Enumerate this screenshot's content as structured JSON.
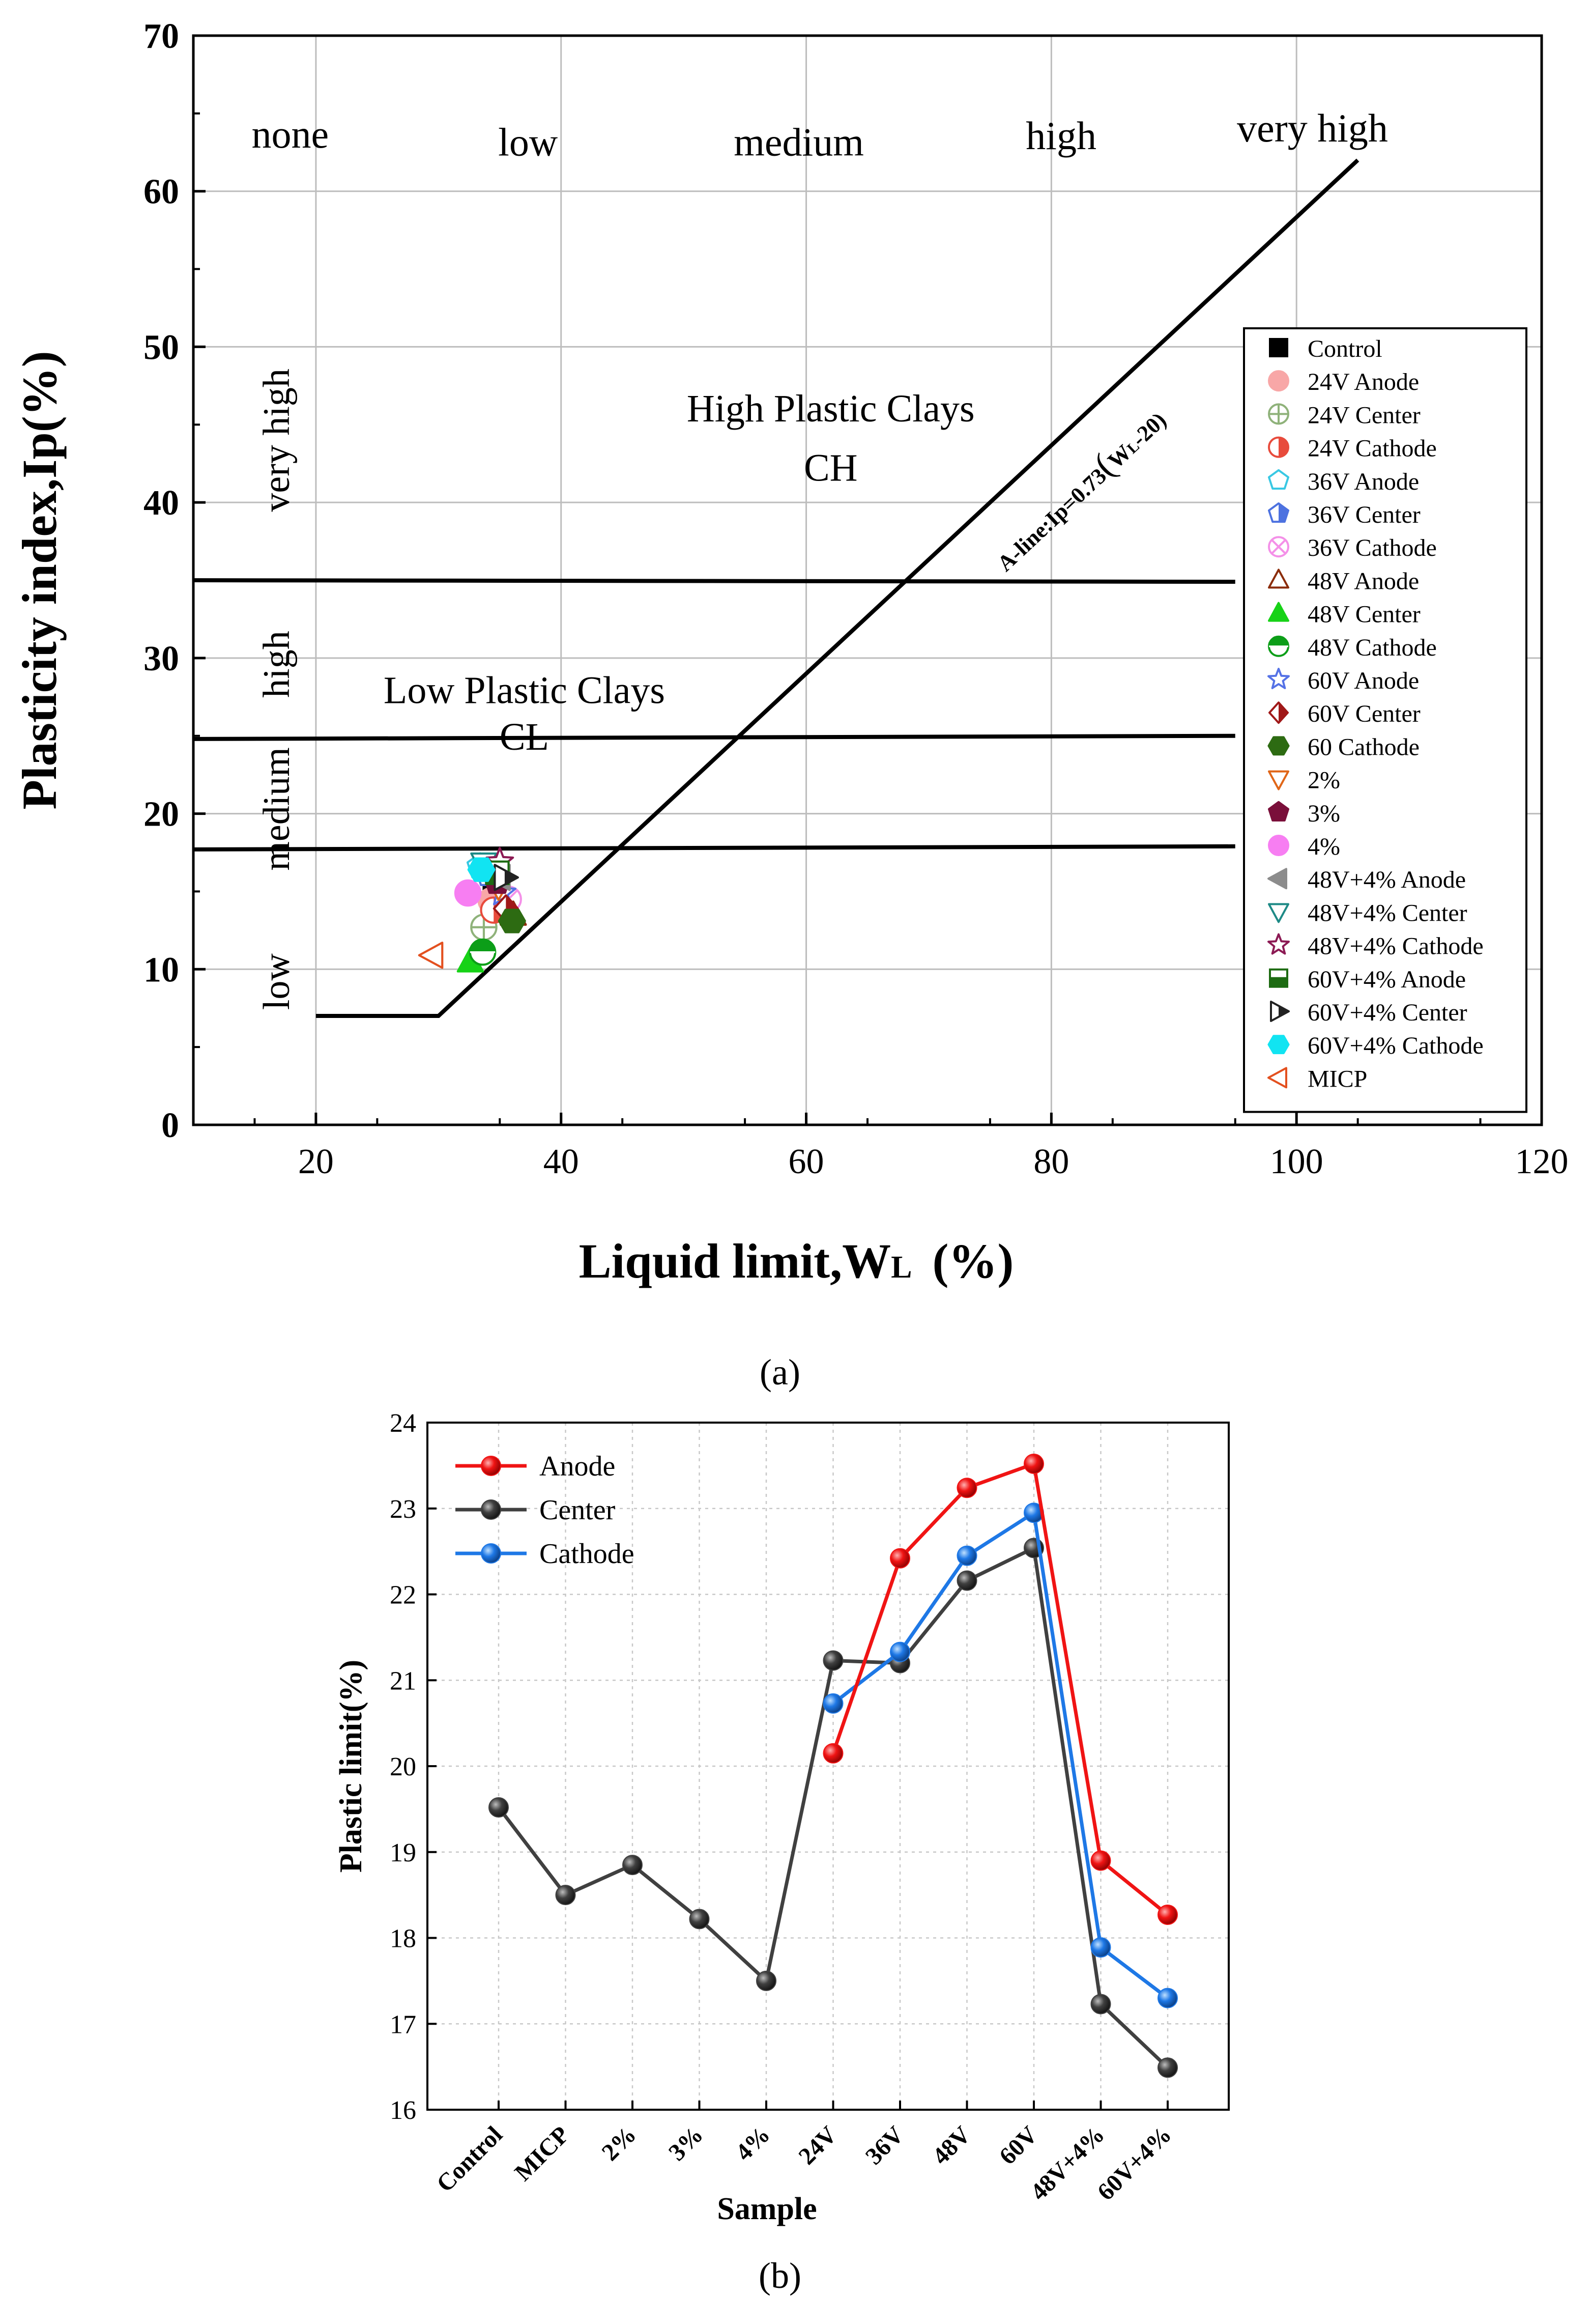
{
  "panel_a": {
    "caption": "(a)",
    "chart_data": {
      "type": "scatter",
      "title": "",
      "xlabel": "Liquid limit,W",
      "xlabel_sub": "L",
      "xlabel_tail": "(%)",
      "ylabel": "Plasticity index,Ip(%)",
      "xlim": [
        10,
        120
      ],
      "ylim": [
        0,
        70
      ],
      "xticks": [
        20,
        40,
        60,
        80,
        100,
        120
      ],
      "yticks": [
        0,
        10,
        20,
        30,
        40,
        50,
        60,
        70
      ],
      "grid": true,
      "legend_position": "right",
      "plasticity_columns": [
        "none",
        "low",
        "medium",
        "high",
        "very high"
      ],
      "plasticity_rows": [
        "low",
        "medium",
        "high",
        "very high"
      ],
      "region_labels": {
        "ch_title": "High Plastic Clays",
        "ch_abbr": "CH",
        "cl_title": "Low Plastic Clays",
        "cl_abbr": "CL"
      },
      "a_line": {
        "label": "A-line:Ip=0.73(WL-20)",
        "label_prefix": "A-line:Ip=0.73",
        "label_paren_open": "(",
        "label_w": "W",
        "label_sub": "L",
        "label_tail": "-20)",
        "points": [
          [
            20,
            7
          ],
          [
            30,
            7
          ],
          [
            105,
            62
          ]
        ]
      },
      "boundary_lines": [
        {
          "from": [
            10,
            17.7
          ],
          "to": [
            95,
            17.9
          ]
        },
        {
          "from": [
            10,
            24.8
          ],
          "to": [
            95,
            25
          ]
        },
        {
          "from": [
            10,
            35
          ],
          "to": [
            95,
            34.9
          ]
        }
      ],
      "series": [
        {
          "name": "Control",
          "marker": "square",
          "color": "#000000",
          "fill": "solid",
          "x": 34.6,
          "y": 15.8
        },
        {
          "name": "24V Anode",
          "marker": "circle",
          "color": "#f8a7a7",
          "fill": "solid",
          "x": 34.3,
          "y": 14.4
        },
        {
          "name": "24V Center",
          "marker": "circle-plus",
          "color": "#8fb27a",
          "fill": "open",
          "x": 33.7,
          "y": 12.7
        },
        {
          "name": "24V Cathode",
          "marker": "circle-half",
          "color": "#e84b3c",
          "fill": "half",
          "x": 34.5,
          "y": 13.8
        },
        {
          "name": "36V Anode",
          "marker": "pentagon",
          "color": "#39c8e3",
          "fill": "open",
          "x": 33.4,
          "y": 16.6
        },
        {
          "name": "36V Center",
          "marker": "pentagon-half",
          "color": "#4d72e0",
          "fill": "half",
          "x": 34.1,
          "y": 16.1
        },
        {
          "name": "36V Cathode",
          "marker": "x-circle",
          "color": "#f490e8",
          "fill": "open",
          "x": 35.7,
          "y": 14.5
        },
        {
          "name": "48V Anode",
          "marker": "triangle-up",
          "color": "#8b2c0a",
          "fill": "open",
          "x": 36.1,
          "y": 13.5
        },
        {
          "name": "48V Center",
          "marker": "triangle-up",
          "color": "#17d217",
          "fill": "solid",
          "x": 32.6,
          "y": 10.5
        },
        {
          "name": "48V Cathode",
          "marker": "circle-half-h",
          "color": "#0c9e18",
          "fill": "half",
          "x": 33.6,
          "y": 11.1
        },
        {
          "name": "60V Anode",
          "marker": "star",
          "color": "#5572e6",
          "fill": "open",
          "x": 35.2,
          "y": 14.9
        },
        {
          "name": "60V  Center",
          "marker": "diamond-half",
          "color": "#a01818",
          "fill": "half",
          "x": 35.5,
          "y": 13.9
        },
        {
          "name": "60 Cathode",
          "marker": "hexagon",
          "color": "#2d6b12",
          "fill": "solid",
          "x": 36.0,
          "y": 13.1
        },
        {
          "name": "2%",
          "marker": "triangle-down",
          "color": "#e06618",
          "fill": "open",
          "x": 34.9,
          "y": 15.3
        },
        {
          "name": "3%",
          "marker": "pentagon",
          "color": "#7a0f3a",
          "fill": "solid",
          "x": 34.8,
          "y": 15.6
        },
        {
          "name": "4%",
          "marker": "circle",
          "color": "#f77ef2",
          "fill": "solid",
          "x": 32.4,
          "y": 14.9
        },
        {
          "name": "48V+4% Anode",
          "marker": "triangle-left",
          "color": "#8c8c8c",
          "fill": "solid",
          "x": 35.0,
          "y": 15.9
        },
        {
          "name": "48V+4% Center",
          "marker": "triangle-down",
          "color": "#1e8a86",
          "fill": "open",
          "x": 33.7,
          "y": 16.8
        },
        {
          "name": "48V+4% Cathode",
          "marker": "star",
          "color": "#8c1a54",
          "fill": "open",
          "x": 35.0,
          "y": 16.9
        },
        {
          "name": "60V+4% Anode",
          "marker": "square-half",
          "color": "#1d6b12",
          "fill": "half",
          "x": 34.8,
          "y": 16.2
        },
        {
          "name": "60V+4% Center",
          "marker": "triangle-right",
          "color": "#222222",
          "fill": "half",
          "x": 35.4,
          "y": 15.9
        },
        {
          "name": "60V+4% Cathode",
          "marker": "hexagon",
          "color": "#11e4f2",
          "fill": "solid",
          "x": 33.5,
          "y": 16.4
        },
        {
          "name": "MICP",
          "marker": "triangle-left",
          "color": "#e3501f",
          "fill": "open",
          "x": 29.5,
          "y": 10.9
        }
      ]
    }
  },
  "panel_b": {
    "caption": "(b)",
    "chart_data": {
      "type": "line",
      "title": "",
      "xlabel": "Sample",
      "ylabel": "Plastic limit(%)",
      "ylim": [
        16,
        24
      ],
      "yticks": [
        16,
        17,
        18,
        19,
        20,
        21,
        22,
        23,
        24
      ],
      "categories": [
        "Control",
        "MICP",
        "2%",
        "3%",
        "4%",
        "24V",
        "36V",
        "48V",
        "60V",
        "48V+4%",
        "60V+4%"
      ],
      "grid": true,
      "legend_position": "top-left",
      "series": [
        {
          "name": "Anode",
          "color": "#f01414",
          "values": [
            null,
            null,
            null,
            null,
            null,
            20.15,
            22.42,
            23.24,
            23.52,
            18.9,
            18.27
          ]
        },
        {
          "name": "Center",
          "color": "#404040",
          "values": [
            19.52,
            18.5,
            18.85,
            18.22,
            17.5,
            21.23,
            21.2,
            22.16,
            22.54,
            17.23,
            16.49
          ]
        },
        {
          "name": "Cathode",
          "color": "#1e78e6",
          "values": [
            null,
            null,
            null,
            null,
            null,
            20.73,
            21.33,
            22.45,
            22.95,
            17.89,
            17.3
          ]
        }
      ]
    }
  }
}
